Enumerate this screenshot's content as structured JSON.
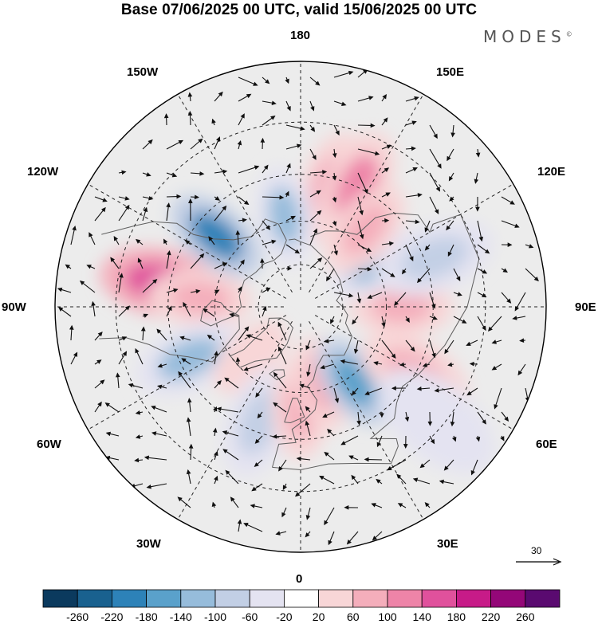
{
  "title": "Base 07/06/2025 00 UTC, valid 15/06/2025 00 UTC",
  "brand": "MODES",
  "brand_mark": "©",
  "longitude_labels": {
    "l180": "180",
    "l150w": "150W",
    "l150e": "150E",
    "l120w": "120W",
    "l120e": "120E",
    "l90w": "90W",
    "l90e": "90E",
    "l60w": "60W",
    "l60e": "60E",
    "l30w": "30W",
    "l30e": "30E",
    "l0": "0"
  },
  "reference_vector": {
    "label": "30"
  },
  "colorbar": {
    "colors": [
      "#0b3a5e",
      "#19618f",
      "#2d82b8",
      "#5aa1cb",
      "#96bcdb",
      "#c2cfe5",
      "#e4e3f1",
      "#ffffff",
      "#f8d6d7",
      "#f4aebb",
      "#ee84a8",
      "#e0519c",
      "#c71b88",
      "#940778",
      "#5a0a70"
    ],
    "ticks": [
      "-260",
      "-220",
      "-180",
      "-140",
      "-100",
      "-60",
      "-20",
      "20",
      "60",
      "100",
      "140",
      "180",
      "220",
      "260"
    ]
  },
  "map": {
    "projection": "north polar stereographic",
    "background_color": "#ececec",
    "anomalies": [
      {
        "lon": 165,
        "lat": 48,
        "value": 105
      },
      {
        "lon": 155,
        "lat": 45,
        "value": 130
      },
      {
        "lon": -170,
        "lat": 58,
        "value": -120
      },
      {
        "lon": -130,
        "lat": 52,
        "value": -190
      },
      {
        "lon": -100,
        "lat": 42,
        "value": 140
      },
      {
        "lon": -95,
        "lat": 55,
        "value": 90
      },
      {
        "lon": -65,
        "lat": 48,
        "value": -110
      },
      {
        "lon": -45,
        "lat": 65,
        "value": 40
      },
      {
        "lon": -20,
        "lat": 48,
        "value": -100
      },
      {
        "lon": 0,
        "lat": 55,
        "value": 80
      },
      {
        "lon": 15,
        "lat": 62,
        "value": 90
      },
      {
        "lon": 35,
        "lat": 58,
        "value": -150
      },
      {
        "lon": 60,
        "lat": 45,
        "value": 60
      },
      {
        "lon": 90,
        "lat": 55,
        "value": 90
      },
      {
        "lon": 120,
        "lat": 60,
        "value": -120
      },
      {
        "lon": 140,
        "lat": 55,
        "value": 60
      },
      {
        "lon": 110,
        "lat": 42,
        "value": -70
      },
      {
        "lon": 50,
        "lat": 32,
        "value": -40
      }
    ]
  }
}
